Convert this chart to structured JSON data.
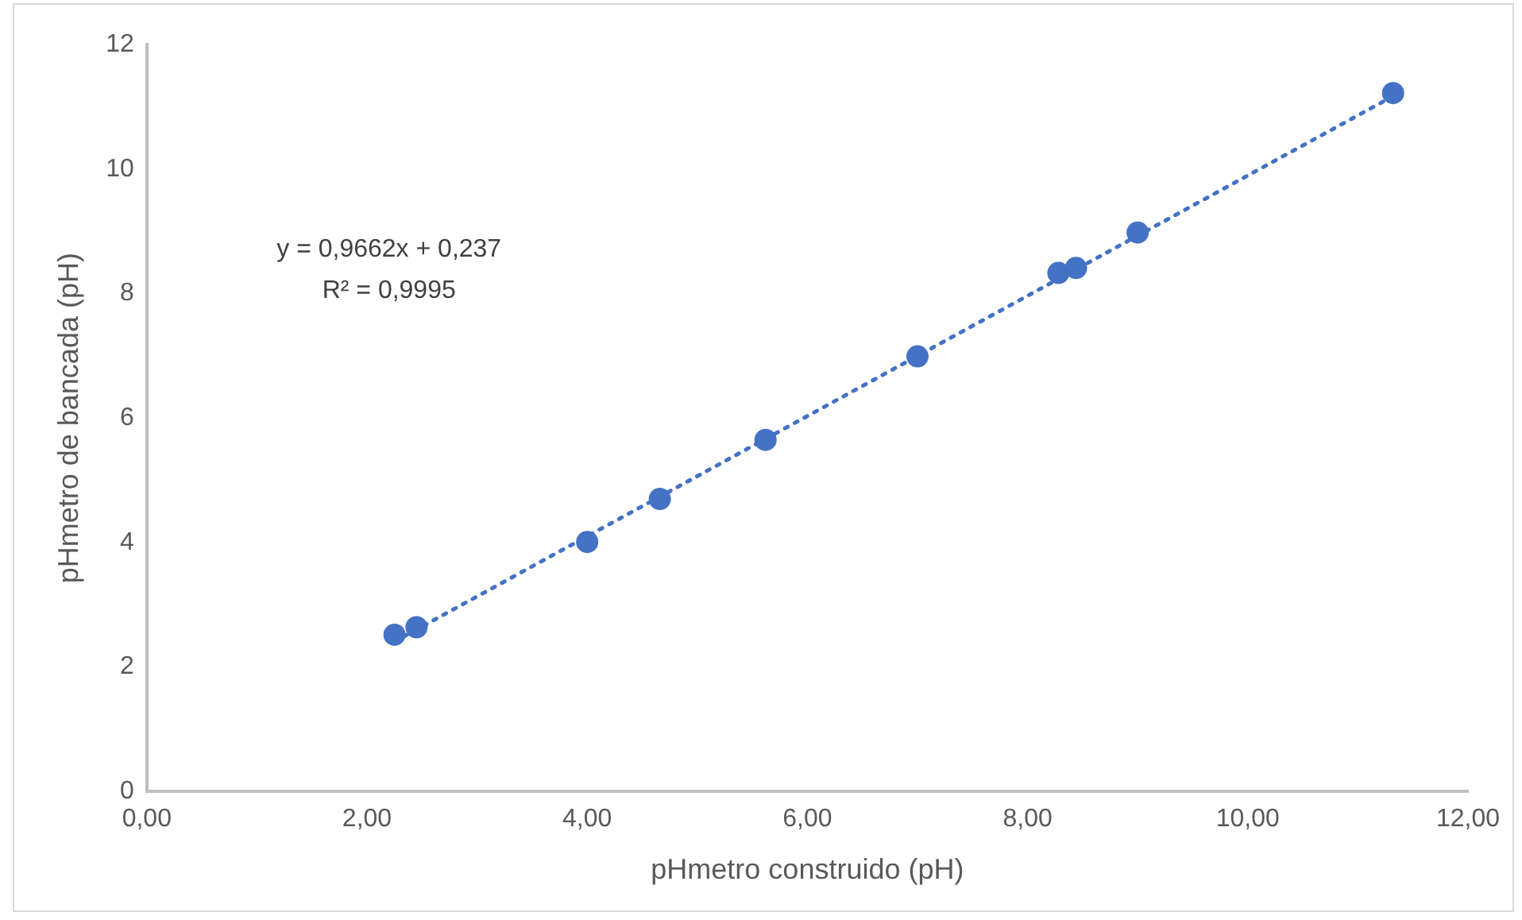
{
  "chart_data": {
    "type": "scatter",
    "xlabel": "pHmetro construido (pH)",
    "ylabel": "pHmetro de bancada (pH)",
    "annotations": [
      "y = 0,9662x + 0,237",
      "R² = 0,9995"
    ],
    "x": [
      2.25,
      2.45,
      4.0,
      4.66,
      5.62,
      7.0,
      8.28,
      8.44,
      9.0,
      11.32
    ],
    "series": [
      {
        "color": "#4472c4",
        "values": [
          2.52,
          2.64,
          4.01,
          4.7,
          5.65,
          6.99,
          8.33,
          8.41,
          8.98,
          11.22
        ],
        "marker": "circle"
      },
      {
        "type": "line",
        "color": "#4472c4",
        "x": [
          2.25,
          11.32
        ],
        "values": [
          2.41,
          11.17
        ],
        "line_style": "dotted",
        "marker": "none"
      }
    ],
    "xlim": [
      0,
      12
    ],
    "xticks": [
      {
        "value": 0,
        "label": "0,00"
      },
      {
        "value": 2,
        "label": "2,00"
      },
      {
        "value": 4,
        "label": "4,00"
      },
      {
        "value": 6,
        "label": "6,00"
      },
      {
        "value": 8,
        "label": "8,00"
      },
      {
        "value": 10,
        "label": "10,00"
      },
      {
        "value": 12,
        "label": "12,00"
      }
    ],
    "ylim": [
      0,
      12
    ],
    "yticks": [
      0,
      2,
      4,
      6,
      8,
      10,
      12
    ],
    "grid": false,
    "legend": false
  }
}
